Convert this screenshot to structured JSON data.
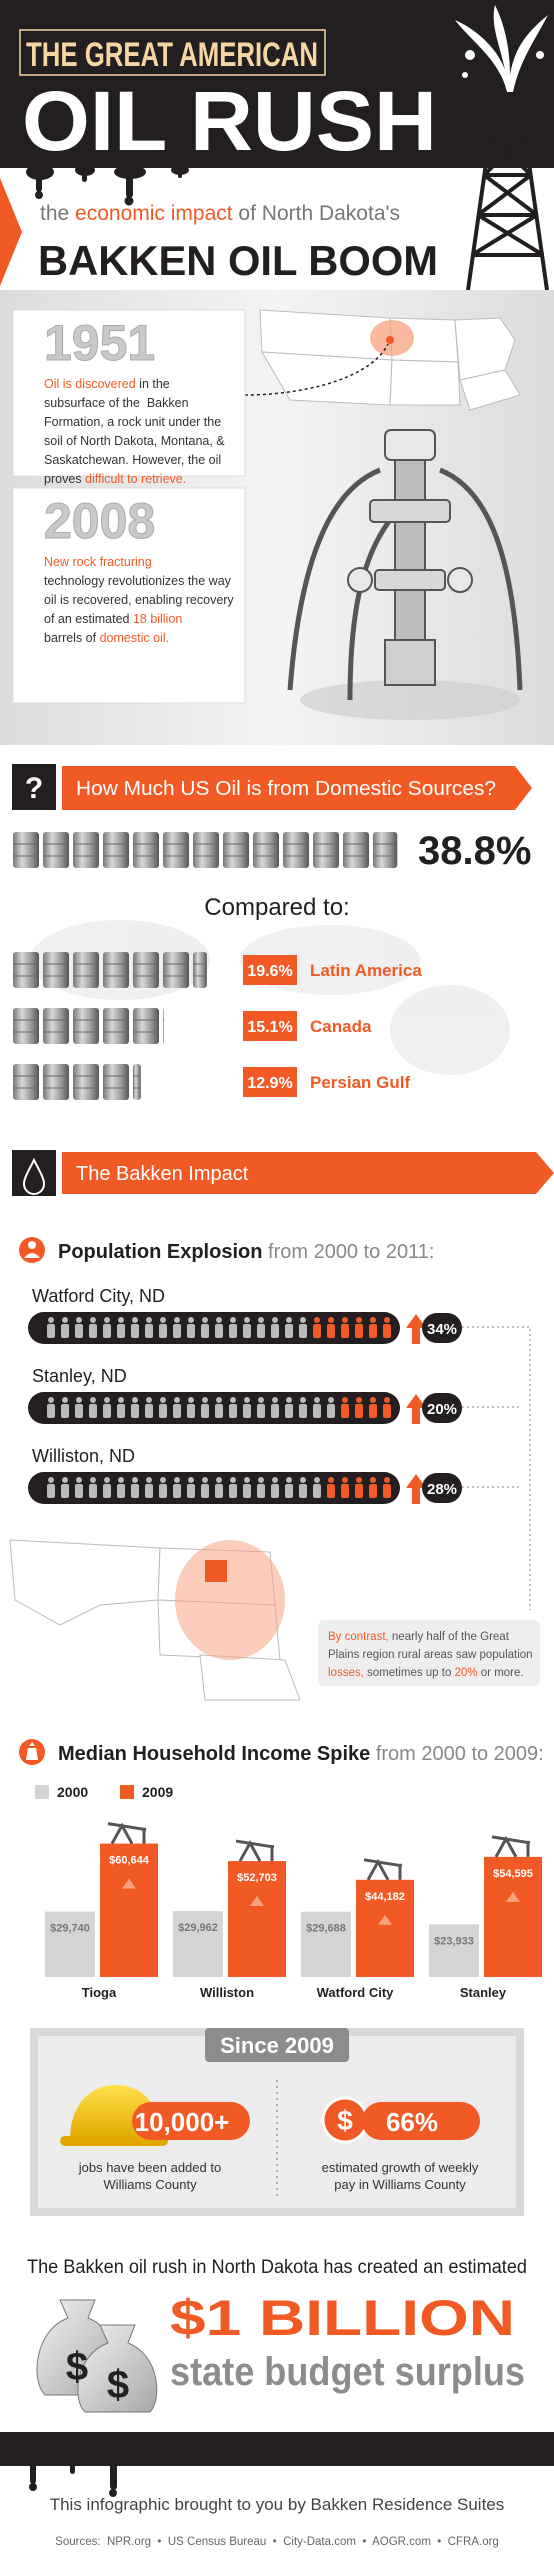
{
  "header": {
    "line1": "THE GREAT AMERICAN",
    "line2": "OIL RUSH",
    "subtitle": [
      {
        "text": "the "
      },
      {
        "text": "economic impact",
        "highlight": true
      },
      {
        "text": " of North Dakota's"
      }
    ],
    "title": "BAKKEN OIL BOOM"
  },
  "history": [
    {
      "year": "1951",
      "lines": [
        [
          {
            "text": "Oil is discovered",
            "highlight": true
          },
          {
            "text": " in the"
          }
        ],
        [
          {
            "text": "subsurface of the  Bakken"
          }
        ],
        [
          {
            "text": "Formation, a rock unit under the"
          }
        ],
        [
          {
            "text": "soil of North Dakota, Montana, &"
          }
        ],
        [
          {
            "text": "Saskatchewan. However, the oil"
          }
        ],
        [
          {
            "text": "proves "
          },
          {
            "text": "difficult to retrieve.",
            "highlight": true
          }
        ]
      ]
    },
    {
      "year": "2008",
      "lines": [
        [
          {
            "text": "New rock fracturing",
            "highlight": true
          }
        ],
        [
          {
            "text": "technology revolutionizes the way"
          }
        ],
        [
          {
            "text": "oil is recovered, enabling recovery"
          }
        ],
        [
          {
            "text": "of an estimated "
          },
          {
            "text": "18 billion",
            "highlight": true
          }
        ],
        [
          {
            "text": "barrels of "
          },
          {
            "text": "domestic oil.",
            "highlight": true
          }
        ]
      ]
    }
  ],
  "domestic": {
    "icon": "?",
    "question": "How Much US Oil is from Domestic Sources?",
    "value": 38.8,
    "value_label": "38.8%",
    "compared_title": "Compared to:",
    "compared": [
      {
        "name": "Latin America",
        "value": 19.6,
        "value_label": "19.6%"
      },
      {
        "name": "Canada",
        "value": 15.1,
        "value_label": "15.1%"
      },
      {
        "name": "Persian Gulf",
        "value": 12.9,
        "value_label": "12.9%"
      }
    ]
  },
  "impact": {
    "title": "The Bakken Impact",
    "population": {
      "title": "Population Explosion",
      "subtitle": " from 2000 to 2011:",
      "cities": [
        {
          "name": "Watford City, ND",
          "value": 34,
          "value_label": "34%"
        },
        {
          "name": "Stanley, ND",
          "value": 20,
          "value_label": "20%"
        },
        {
          "name": "Williston, ND",
          "value": 28,
          "value_label": "28%"
        }
      ],
      "contrast": [
        [
          {
            "text": "By contrast,",
            "highlight": true
          },
          {
            "text": " nearly half of the Great"
          }
        ],
        [
          {
            "text": "Plains region rural areas saw population"
          }
        ],
        [
          {
            "text": "losses,",
            "highlight": true
          },
          {
            "text": " sometimes up to "
          },
          {
            "text": "20%",
            "highlight": true
          },
          {
            "text": " or more."
          }
        ]
      ]
    },
    "income": {
      "title": "Median Household Income Spike",
      "subtitle": " from 2000 to 2009:",
      "categories": [
        "Tioga",
        "Williston",
        "Watford City",
        "Stanley"
      ],
      "series": [
        {
          "name": "2000",
          "color": "#d4d4d4",
          "values": [
            29740,
            29962,
            29688,
            23933
          ],
          "value_labels": [
            "$29,740",
            "$29,962",
            "$29,688",
            "$23,933"
          ]
        },
        {
          "name": "2009",
          "color": "#f15a24",
          "values": [
            60644,
            52703,
            44182,
            54595
          ],
          "value_labels": [
            "$60,644",
            "$52,703",
            "$44,182",
            "$54,595"
          ]
        }
      ]
    }
  },
  "since": {
    "title": "Since 2009",
    "items": [
      {
        "stat": "10,000+",
        "lines": [
          "jobs have been added to",
          "Williams County"
        ]
      },
      {
        "icon": "$",
        "stat": "66%",
        "lines": [
          "estimated growth of weekly",
          "pay in Williams County"
        ]
      }
    ]
  },
  "surplus": {
    "intro": "The Bakken oil rush in North Dakota has created an estimated",
    "icon": "$",
    "amount": "$1 BILLION",
    "text": "state budget surplus"
  },
  "footer": {
    "credit": "This infographic brought to you by Bakken Residence Suites",
    "sources": "Sources:  NPR.org  •  US Census Bureau  •  City-Data.com  •  AOGR.com  •  CFRA.org"
  }
}
